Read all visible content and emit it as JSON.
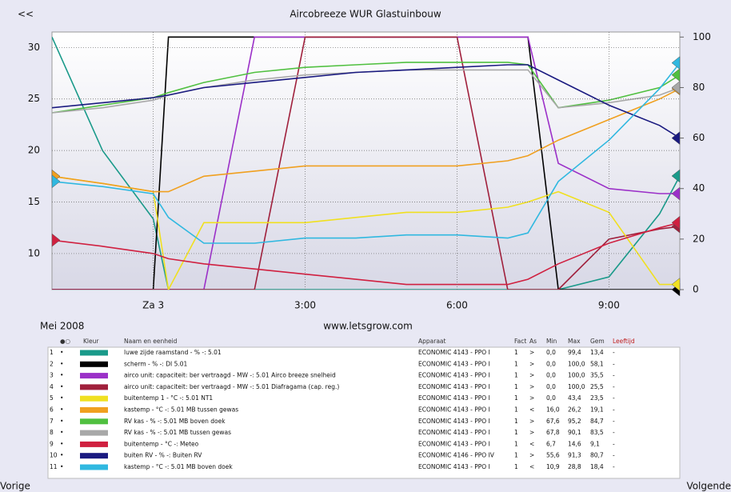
{
  "nav_back": "<<",
  "date_label": "Mei 2008",
  "site": "www.letsgrow.com",
  "prev": "Vorige",
  "next": "Volgende",
  "chart_data": {
    "type": "line",
    "title": "Aircobreeze WUR Glastuinbouw",
    "x": [
      -2,
      -1,
      0,
      0.3,
      1,
      2,
      3,
      4,
      5,
      6,
      7,
      7.4,
      8,
      9,
      10,
      10.4
    ],
    "xlim": [
      -2,
      10.4
    ],
    "xticks": [
      {
        "value": 0,
        "label": "Za 3"
      },
      {
        "value": 3,
        "label": "3:00"
      },
      {
        "value": 6,
        "label": "6:00"
      },
      {
        "value": 9,
        "label": "9:00"
      }
    ],
    "ylim": [
      6.5,
      31.5
    ],
    "yticks": [
      10,
      15,
      20,
      25,
      30
    ],
    "y2lim": [
      0,
      102
    ],
    "y2ticks": [
      0,
      20,
      40,
      60,
      80,
      100
    ],
    "grid": true,
    "series": [
      {
        "name": "luwe zijde raamstand - % -: 5.01",
        "color": "#1a9a8a",
        "axis": "y2",
        "values": [
          100,
          55,
          28,
          0,
          0,
          0,
          0,
          0,
          0,
          0,
          0,
          0,
          0,
          5,
          30,
          45
        ]
      },
      {
        "name": "scherm - % -: DI 5.01",
        "color": "#000000",
        "axis": "y2",
        "values": [
          0,
          0,
          0,
          100,
          100,
          100,
          100,
          100,
          100,
          100,
          100,
          100,
          0,
          0,
          0,
          0
        ]
      },
      {
        "name": "airco unit: capaciteit: ber vertraagd - MW -: 5.01 Airco breeze snelheid",
        "color": "#9b30c8",
        "axis": "y2",
        "values": [
          0,
          0,
          0,
          0,
          0,
          100,
          100,
          100,
          100,
          100,
          100,
          100,
          50,
          40,
          38,
          38
        ]
      },
      {
        "name": "airco unit: capaciteit: ber vertraagd - MW -: 5.01 Diafragama (cap. reg.)",
        "color": "#a0203c",
        "axis": "y2",
        "values": [
          0,
          0,
          0,
          0,
          0,
          0,
          100,
          100,
          100,
          100,
          0,
          0,
          0,
          20,
          24,
          25
        ]
      },
      {
        "name": "buitentemp 1 - °C -: 5.01 NT1",
        "color": "#f0e020",
        "values": [
          17.5,
          16.8,
          16,
          6.5,
          13,
          13,
          13,
          13.5,
          14,
          14,
          14.5,
          15,
          16,
          14,
          7,
          7
        ]
      },
      {
        "name": "kastemp - °C -: 5.01 MB tussen gewas",
        "color": "#f0a020",
        "values": [
          17.5,
          16.8,
          16,
          16,
          17.5,
          18,
          18.5,
          18.5,
          18.5,
          18.5,
          19,
          19.5,
          21,
          23,
          25,
          26
        ]
      },
      {
        "name": "RV kas - % -: 5.01 MB boven doek",
        "color": "#50c040",
        "axis": "y2",
        "values": [
          70,
          73,
          76,
          78,
          82,
          86,
          88,
          89,
          90,
          90,
          90,
          89,
          72,
          75,
          80,
          85
        ]
      },
      {
        "name": "RV kas - % -: 5.01 MB tussen gewas",
        "color": "#a8a8a8",
        "axis": "y2",
        "values": [
          70,
          72,
          75,
          77,
          80,
          83,
          85,
          86,
          87,
          87,
          87,
          87,
          72,
          74,
          77,
          80
        ]
      },
      {
        "name": "buitentemp - °C -: Meteo",
        "color": "#d02040",
        "values": [
          11.3,
          10.7,
          10,
          9.5,
          9,
          8.5,
          8,
          7.5,
          7,
          7,
          7,
          7.5,
          9,
          11,
          12.5,
          13
        ]
      },
      {
        "name": "buiten RV - % -: Buiten RV",
        "color": "#1a1a80",
        "axis": "y2",
        "values": [
          72,
          74,
          76,
          77,
          80,
          82,
          84,
          86,
          87,
          88,
          89,
          89,
          83,
          73,
          65,
          60
        ]
      },
      {
        "name": "kastemp - °C -: 5.01 MB boven doek",
        "color": "#30b8e0",
        "values": [
          17,
          16.5,
          15.8,
          13.5,
          11,
          11,
          11.5,
          11.5,
          11.8,
          11.8,
          11.5,
          12,
          17,
          21,
          26,
          28.5
        ]
      }
    ]
  },
  "table": {
    "columns": [
      "●○",
      "Kleur",
      "Naam en eenheid",
      "Apparaat",
      "Fact",
      "As",
      "Min",
      "Max",
      "Gem",
      "Leeftijd"
    ],
    "rows": [
      [
        "1",
        "•",
        "ECONOMIC 4143 - PPO I",
        "1",
        ">",
        "0,0",
        "99,4",
        "13,4",
        "-"
      ],
      [
        "2",
        "•",
        "ECONOMIC 4143 - PPO I",
        "1",
        ">",
        "0,0",
        "100,0",
        "58,1",
        "-"
      ],
      [
        "3",
        "•",
        "ECONOMIC 4143 - PPO I",
        "1",
        ">",
        "0,0",
        "100,0",
        "35,5",
        "-"
      ],
      [
        "4",
        "•",
        "ECONOMIC 4143 - PPO I",
        "1",
        ">",
        "0,0",
        "100,0",
        "25,5",
        "-"
      ],
      [
        "5",
        "•",
        "ECONOMIC 4143 - PPO I",
        "1",
        ">",
        "0,0",
        "43,4",
        "23,5",
        "-"
      ],
      [
        "6",
        "•",
        "ECONOMIC 4143 - PPO I",
        "1",
        "<",
        "16,0",
        "26,2",
        "19,1",
        "-"
      ],
      [
        "7",
        "•",
        "ECONOMIC 4143 - PPO I",
        "1",
        ">",
        "67,6",
        "95,2",
        "84,7",
        "-"
      ],
      [
        "8",
        "•",
        "ECONOMIC 4143 - PPO I",
        "1",
        ">",
        "67,8",
        "90,1",
        "83,5",
        "-"
      ],
      [
        "9",
        "•",
        "ECONOMIC 4143 - PPO I",
        "1",
        "<",
        "6,7",
        "14,6",
        "9,1",
        "-"
      ],
      [
        "10",
        "•",
        "ECONOMIC 4146 - PPO IV",
        "1",
        ">",
        "55,6",
        "91,3",
        "80,7",
        "-"
      ],
      [
        "11",
        "•",
        "ECONOMIC 4143 - PPO I",
        "1",
        "<",
        "10,9",
        "28,8",
        "18,4",
        "-"
      ]
    ]
  }
}
